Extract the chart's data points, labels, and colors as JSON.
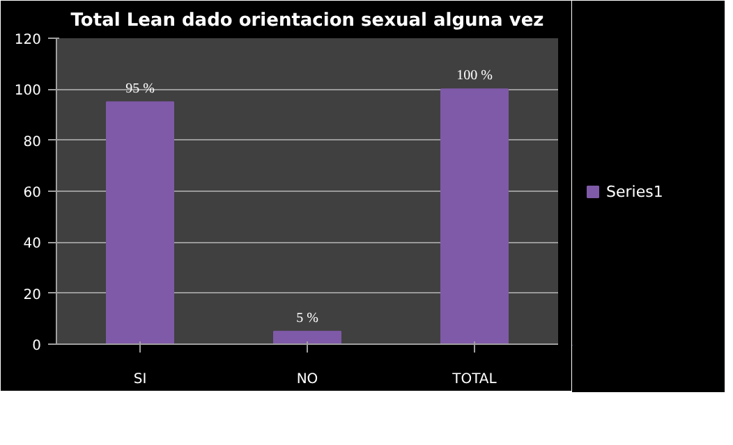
{
  "chart_data": {
    "type": "bar",
    "title": "Total Lean dado orientacion sexual alguna vez",
    "categories": [
      "SI",
      "NO",
      "TOTAL"
    ],
    "series": [
      {
        "name": "Series1",
        "color": "#7f5aa8",
        "values": [
          95,
          5,
          100
        ],
        "value_labels": [
          "95 %",
          "5 %",
          "100 %"
        ]
      }
    ],
    "ylim": [
      0,
      120
    ],
    "yticks": [
      0,
      20,
      40,
      60,
      80,
      100,
      120
    ],
    "grid": "y",
    "legend": "right"
  }
}
